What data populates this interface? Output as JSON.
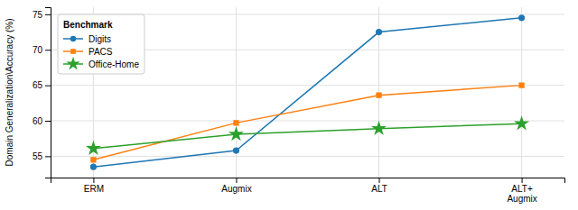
{
  "chart_data": {
    "type": "line",
    "categories": [
      "ERM",
      "Augmix",
      "ALT",
      "ALT+\nAugmix"
    ],
    "series": [
      {
        "name": "Digits",
        "color": "#1f77b4",
        "marker": "circle",
        "values": [
          53.5,
          55.8,
          72.5,
          74.5
        ]
      },
      {
        "name": "PACS",
        "color": "#ff7f0e",
        "marker": "square",
        "values": [
          54.5,
          59.7,
          63.6,
          65.0
        ]
      },
      {
        "name": "Office-Home",
        "color": "#2ca02c",
        "marker": "star",
        "values": [
          56.1,
          58.1,
          58.9,
          59.6
        ]
      }
    ],
    "ylabel": "Domain Generalization\\Accuracy (%)",
    "legend_title": "Benchmark",
    "ylim": [
      52,
      76
    ],
    "yticks": [
      55,
      60,
      65,
      70,
      75
    ],
    "grid": true,
    "legend": "upper left"
  }
}
